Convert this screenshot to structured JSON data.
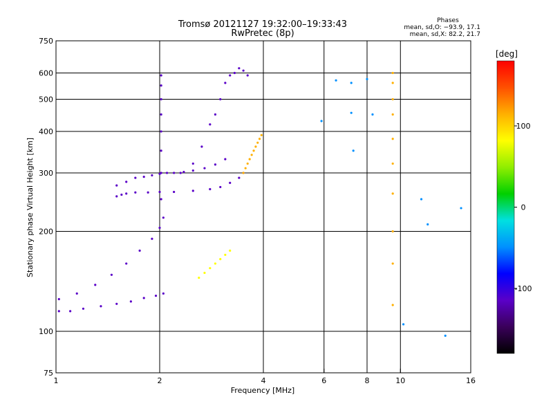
{
  "chart_data": {
    "type": "scatter",
    "title": "Tromsø 20121127 19:32:00–19:33:43",
    "subtitle": "RwPretec (8p)",
    "xlabel": "Frequency [MHz]",
    "ylabel": "Stationary phase Virtual Height [km]",
    "x_scale": "log",
    "y_scale": "log",
    "xlim": [
      1,
      16
    ],
    "ylim": [
      75,
      750
    ],
    "x_ticks": [
      1,
      2,
      4,
      6,
      8,
      10,
      16
    ],
    "x_tick_labels": [
      "1",
      "2",
      "4",
      "6",
      "8",
      "10",
      "16"
    ],
    "y_ticks": [
      75,
      100,
      200,
      300,
      400,
      500,
      600,
      750
    ],
    "y_tick_labels": [
      "75",
      "100",
      "200",
      "300",
      "400",
      "500",
      "600",
      "750"
    ],
    "grid": true,
    "legend": {
      "title": "Phases",
      "lines": [
        "mean, sd,O: −93.9, 17.1",
        "mean, sd,X:  82.2, 21.7"
      ]
    },
    "colorbar": {
      "label": "[deg]",
      "range": [
        -180,
        180
      ],
      "ticks": [
        100,
        0,
        -100
      ],
      "tick_labels": [
        "100",
        "0",
        "-100"
      ],
      "colors": [
        "#000000",
        "#3a005a",
        "#5a00c8",
        "#0000ff",
        "#0090ff",
        "#00e0e0",
        "#00d000",
        "#90ee00",
        "#ffff00",
        "#ffb000",
        "#ff5000",
        "#ff0000"
      ]
    },
    "series": [
      {
        "x": [
          1.02,
          1.1,
          1.2,
          1.35,
          1.5,
          1.65,
          1.8,
          1.95,
          2.05
        ],
        "y": [
          115,
          115,
          117,
          119,
          121,
          123,
          126,
          128,
          130
        ],
        "phase": -100
      },
      {
        "x": [
          1.02,
          1.15,
          1.3,
          1.45,
          1.6,
          1.75,
          1.9,
          2.0,
          2.05
        ],
        "y": [
          125,
          130,
          138,
          148,
          160,
          175,
          190,
          205,
          220
        ],
        "phase": -110
      },
      {
        "x": [
          1.5,
          1.55,
          1.6,
          1.7,
          1.85,
          2.0,
          2.2,
          2.5,
          2.8,
          3.0,
          3.2,
          3.4,
          3.5
        ],
        "y": [
          255,
          258,
          260,
          262,
          262,
          263,
          263,
          265,
          268,
          272,
          280,
          290,
          300
        ],
        "phase": -110
      },
      {
        "x": [
          1.5,
          1.6,
          1.7,
          1.8,
          1.9,
          2.0,
          2.1,
          2.2,
          2.35,
          2.5,
          2.7,
          2.9,
          3.1
        ],
        "y": [
          275,
          282,
          290,
          292,
          295,
          298,
          300,
          300,
          302,
          305,
          310,
          318,
          330
        ],
        "phase": -100
      },
      {
        "x": [
          2.02,
          2.02,
          2.02,
          2.02,
          2.02,
          2.02,
          2.02,
          2.02
        ],
        "y": [
          250,
          300,
          350,
          400,
          450,
          500,
          550,
          590
        ],
        "phase": -110
      },
      {
        "x": [
          2.3,
          2.5,
          2.65,
          2.8,
          2.9,
          3.0,
          3.1,
          3.2,
          3.3,
          3.4,
          3.5,
          3.6
        ],
        "y": [
          300,
          320,
          360,
          420,
          450,
          500,
          560,
          590,
          600,
          620,
          610,
          590
        ],
        "phase": -130
      },
      {
        "x": [
          3.5,
          3.55,
          3.6,
          3.65,
          3.7,
          3.75,
          3.8,
          3.85,
          3.9,
          3.95
        ],
        "y": [
          300,
          310,
          320,
          330,
          340,
          350,
          360,
          370,
          380,
          390
        ],
        "phase": 100
      },
      {
        "x": [
          2.6,
          2.7,
          2.8,
          2.9,
          3.0,
          3.1,
          3.2
        ],
        "y": [
          145,
          150,
          155,
          160,
          165,
          170,
          175
        ],
        "phase": 90
      },
      {
        "x": [
          9.5,
          9.5,
          9.5,
          9.5,
          9.5,
          9.5,
          9.5,
          9.5,
          9.5,
          9.5
        ],
        "y": [
          120,
          160,
          200,
          260,
          320,
          380,
          450,
          500,
          560,
          600
        ],
        "phase": 110
      },
      {
        "x": [
          6.5,
          7.2,
          7.2,
          7.3,
          8.0,
          8.3,
          5.9,
          10.2,
          11.5,
          12.0,
          13.5,
          15.0
        ],
        "y": [
          570,
          455,
          560,
          350,
          575,
          450,
          430,
          105,
          250,
          210,
          97,
          235
        ],
        "phase": -60
      }
    ]
  }
}
